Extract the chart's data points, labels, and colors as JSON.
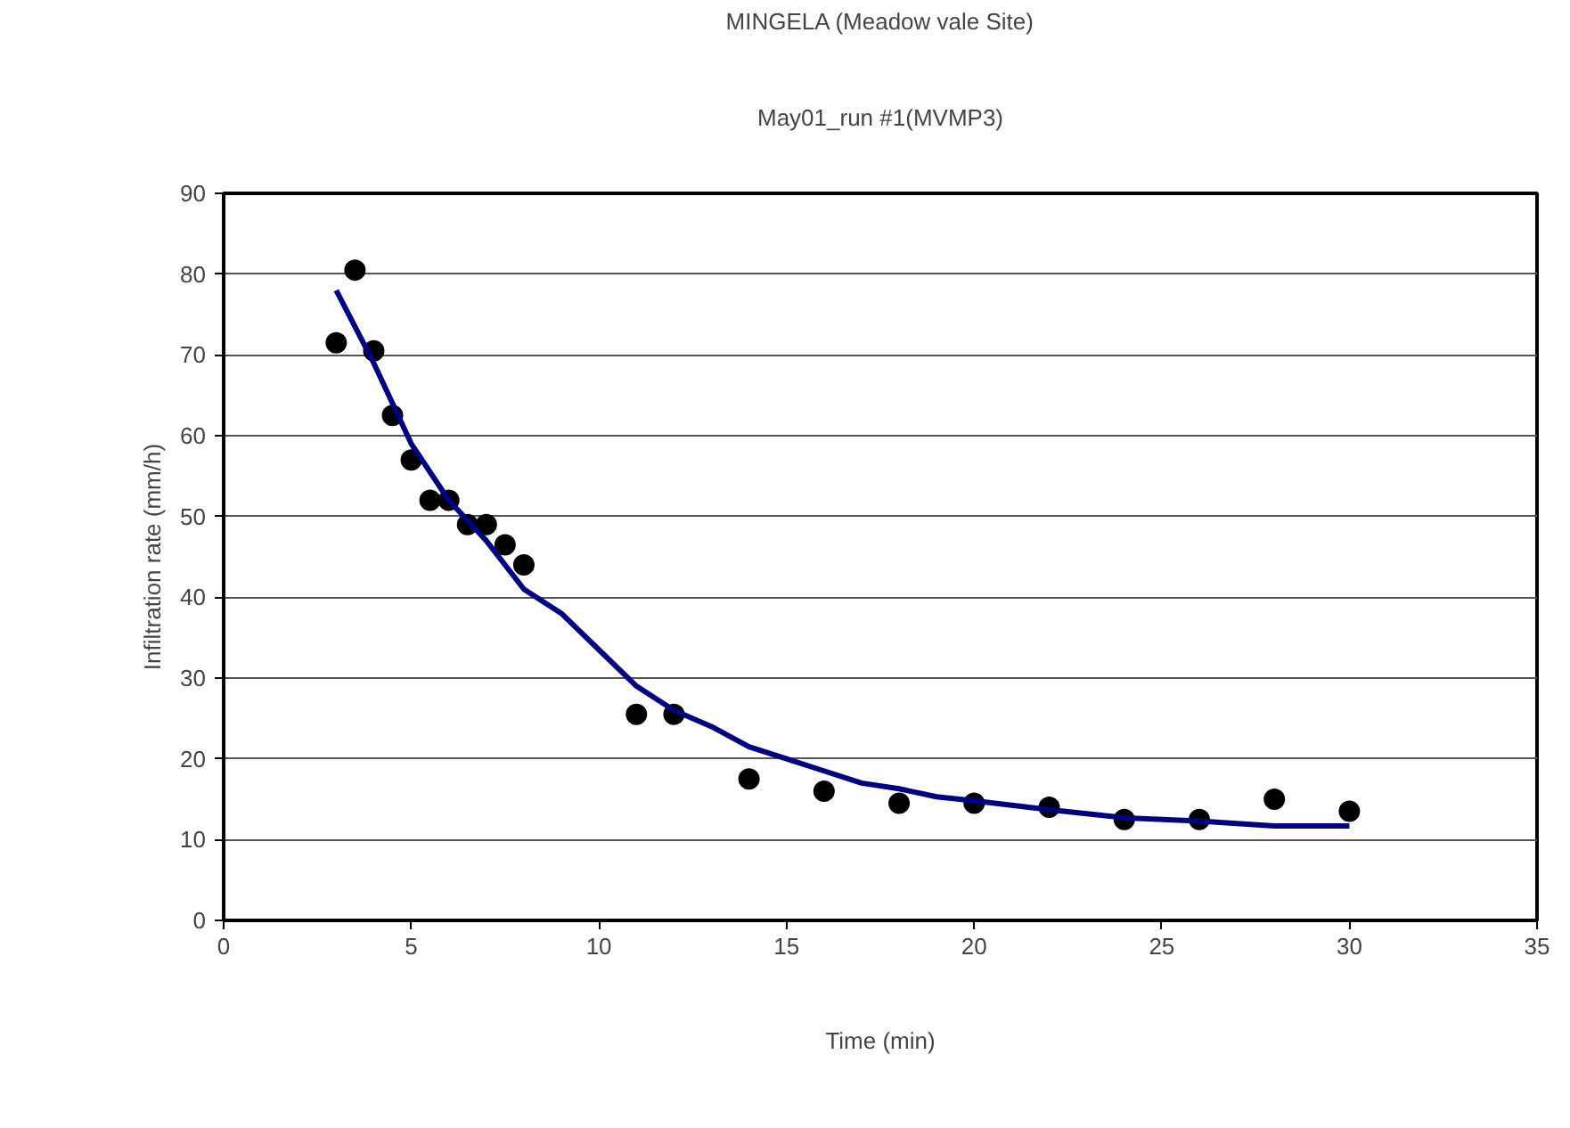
{
  "chart_data": {
    "type": "scatter",
    "title": "MINGELA (Meadow vale Site)",
    "subtitle": "May01_run #1(MVMP3)",
    "xlabel": "Time (min)",
    "ylabel": "Infiltration rate (mm/h)",
    "xlim": [
      0,
      35
    ],
    "xticks": [
      0,
      5,
      10,
      15,
      20,
      25,
      30,
      35
    ],
    "ylim": [
      0,
      90
    ],
    "yticks": [
      0,
      10,
      20,
      30,
      40,
      50,
      60,
      70,
      80,
      90
    ],
    "grid": "y",
    "marker": "circle",
    "series": [
      {
        "color": "#000000",
        "x": [
          3,
          3.5,
          4,
          4.5,
          5,
          5.5,
          6,
          6.5,
          7,
          7.5,
          8,
          11,
          12,
          14,
          16,
          18,
          20,
          22,
          24,
          26,
          28,
          30
        ],
        "values": [
          71.5,
          80.5,
          70.5,
          62.5,
          57,
          52,
          52,
          49,
          49,
          46.5,
          44,
          25.5,
          25.5,
          17.5,
          16,
          14.5,
          14.5,
          14,
          12.5,
          12.5,
          15,
          13.5
        ]
      },
      {
        "type": "line",
        "color": "#000080",
        "marker": "none",
        "x": [
          3,
          4,
          5,
          6,
          7,
          8,
          9,
          10,
          11,
          12,
          13,
          14,
          15,
          16,
          17,
          18,
          19,
          20,
          22,
          24,
          26,
          28,
          30
        ],
        "values": [
          78,
          69,
          59,
          52,
          47,
          41,
          38,
          33.5,
          29,
          26,
          24,
          21.5,
          20,
          18.5,
          17,
          16.3,
          15.3,
          14.8,
          13.7,
          12.7,
          12.3,
          11.7,
          11.7
        ]
      }
    ]
  }
}
